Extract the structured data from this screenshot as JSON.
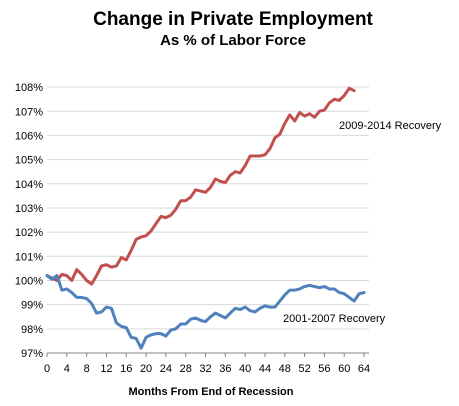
{
  "chart_data": {
    "type": "line",
    "title": "Change in Private Employment",
    "subtitle": "As % of Labor Force",
    "xlabel": "Months From End of Recession",
    "ylabel": "",
    "xlim": [
      0,
      65
    ],
    "ylim": [
      97,
      108.5
    ],
    "x_ticks": [
      "0",
      "4",
      "8",
      "12",
      "16",
      "20",
      "24",
      "28",
      "32",
      "36",
      "40",
      "44",
      "48",
      "52",
      "56",
      "60",
      "64"
    ],
    "y_ticks": [
      "97%",
      "98%",
      "99%",
      "100%",
      "101%",
      "102%",
      "103%",
      "104%",
      "105%",
      "106%",
      "107%",
      "108%"
    ],
    "grid": "horizontal",
    "series": [
      {
        "name": "2009-2014 Recovery",
        "color": "#C0504D",
        "values": [
          100.2,
          100.1,
          100.0,
          100.25,
          100.2,
          100.0,
          100.45,
          100.25,
          100.0,
          99.85,
          100.2,
          100.6,
          100.65,
          100.55,
          100.6,
          100.95,
          100.85,
          101.25,
          101.7,
          101.8,
          101.85,
          102.05,
          102.35,
          102.65,
          102.6,
          102.7,
          102.95,
          103.3,
          103.3,
          103.45,
          103.75,
          103.7,
          103.65,
          103.85,
          104.2,
          104.1,
          104.05,
          104.35,
          104.5,
          104.45,
          104.75,
          105.15,
          105.15,
          105.15,
          105.2,
          105.45,
          105.9,
          106.05,
          106.5,
          106.85,
          106.6,
          106.95,
          106.8,
          106.9,
          106.75,
          107.0,
          107.05,
          107.35,
          107.5,
          107.45,
          107.65,
          107.95,
          107.85
        ]
      },
      {
        "name": "2001-2007 Recovery",
        "color": "#4F81BD",
        "values": [
          100.2,
          100.05,
          100.2,
          99.6,
          99.65,
          99.5,
          99.3,
          99.3,
          99.25,
          99.05,
          98.65,
          98.7,
          98.9,
          98.85,
          98.25,
          98.1,
          98.05,
          97.65,
          97.6,
          97.2,
          97.65,
          97.75,
          97.8,
          97.8,
          97.7,
          97.95,
          98.0,
          98.2,
          98.2,
          98.4,
          98.45,
          98.35,
          98.3,
          98.5,
          98.65,
          98.55,
          98.45,
          98.65,
          98.85,
          98.8,
          98.9,
          98.75,
          98.7,
          98.85,
          98.95,
          98.9,
          98.9,
          99.15,
          99.4,
          99.6,
          99.6,
          99.65,
          99.75,
          99.8,
          99.75,
          99.7,
          99.75,
          99.65,
          99.65,
          99.5,
          99.45,
          99.3,
          99.15,
          99.45,
          99.5
        ]
      }
    ]
  }
}
